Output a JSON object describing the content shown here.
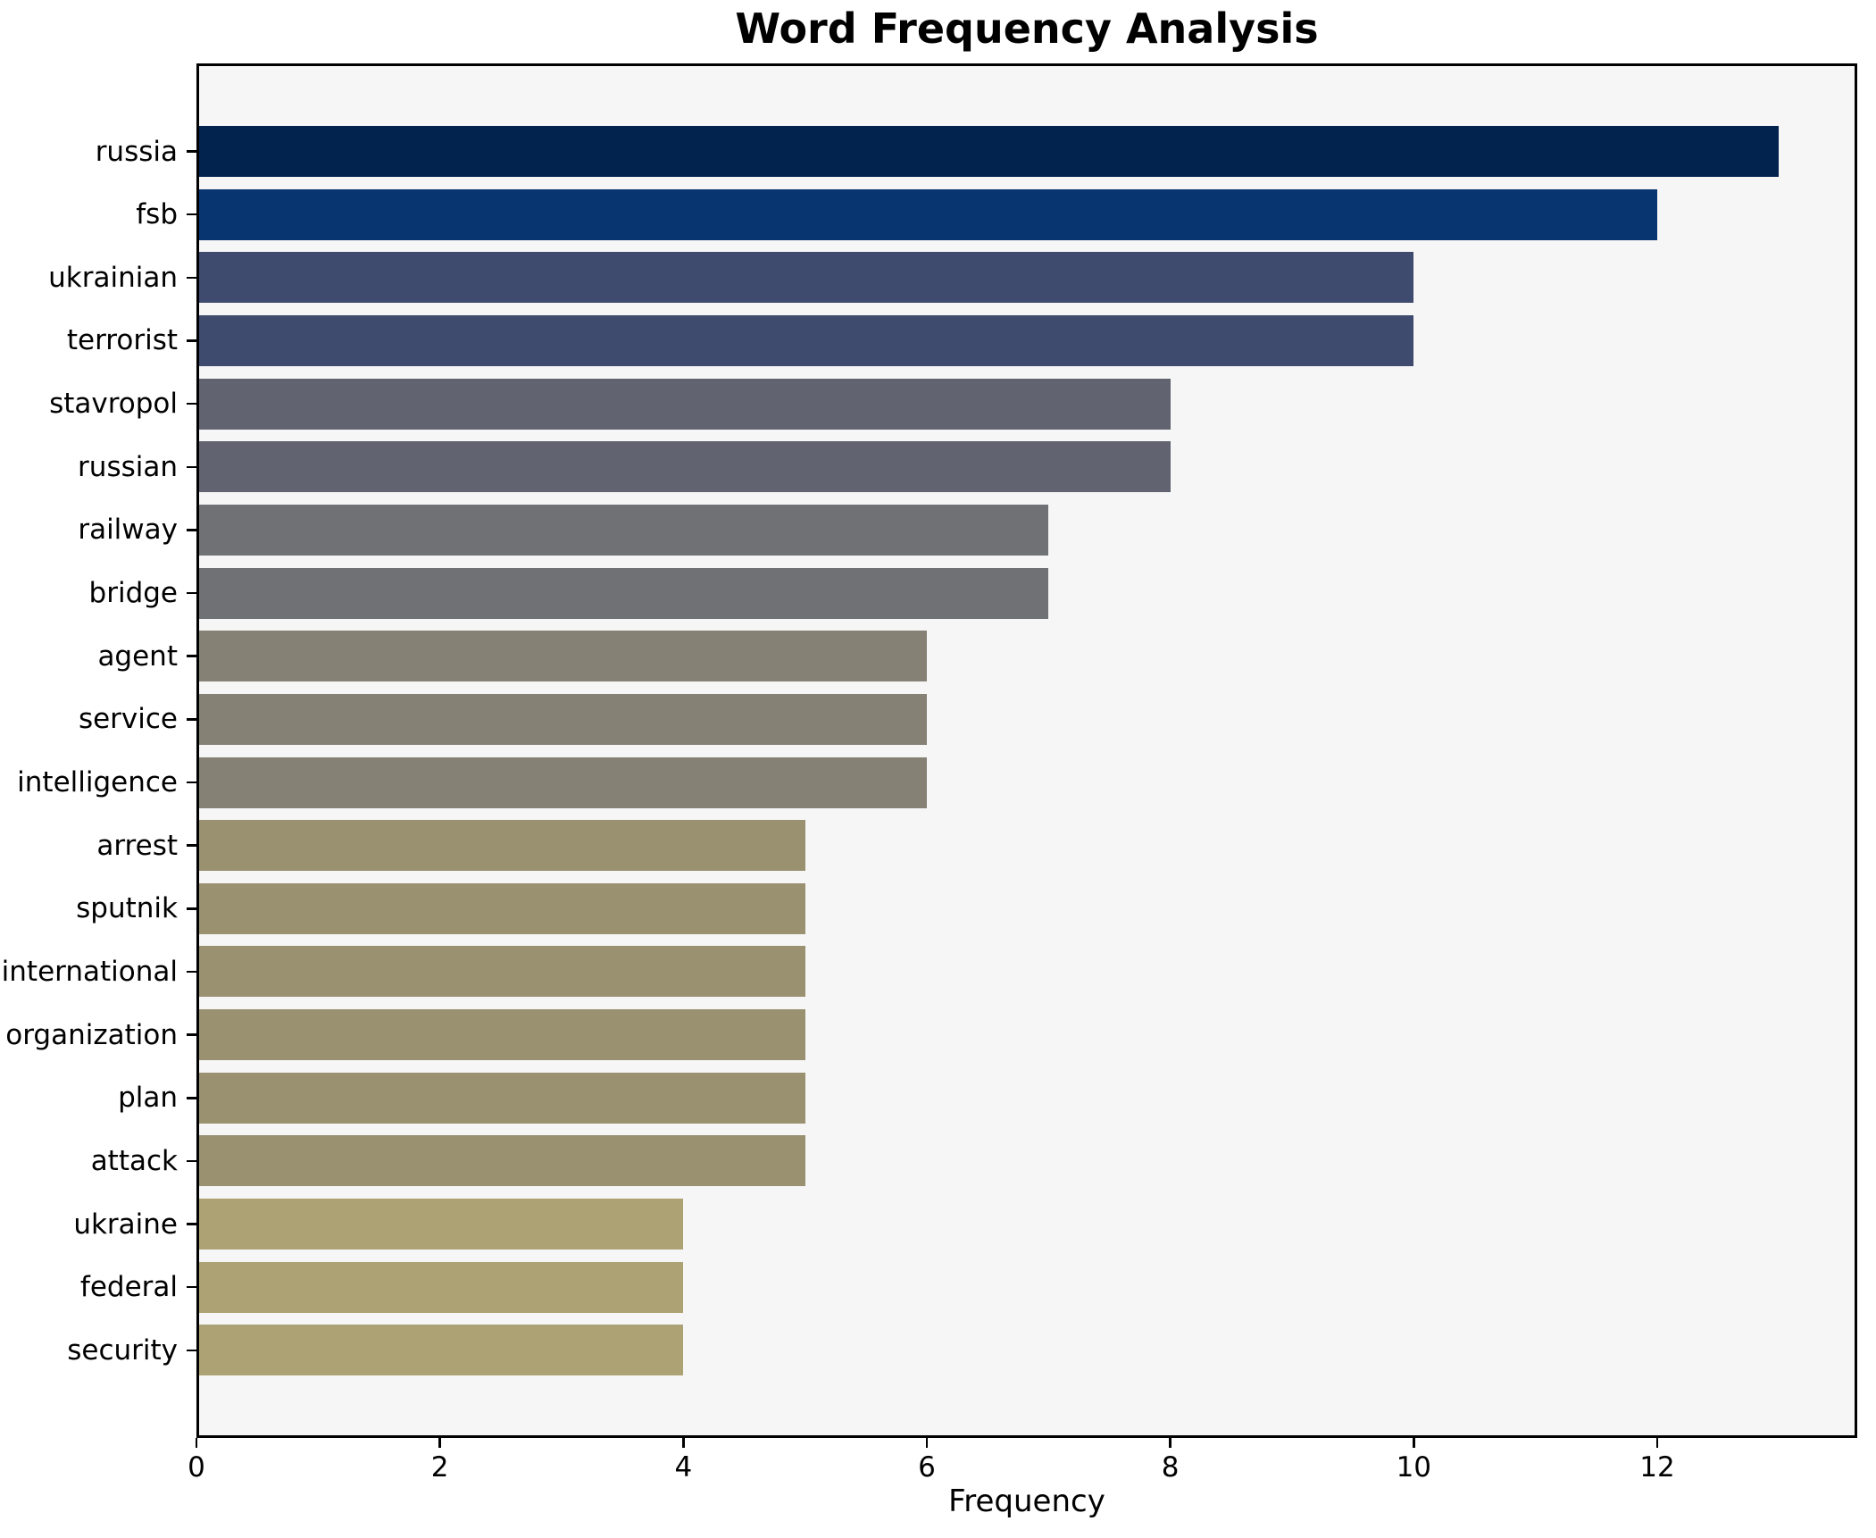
{
  "title": "Word Frequency Analysis",
  "chart_data": {
    "type": "bar",
    "orientation": "horizontal",
    "title": "Word Frequency Analysis",
    "xlabel": "Frequency",
    "ylabel": "",
    "xlim": [
      0,
      13.64
    ],
    "x_ticks": [
      0,
      2,
      4,
      6,
      8,
      10,
      12
    ],
    "grid": false,
    "legend_position": "none",
    "plot_background": "#f6f6f7",
    "figure_background": "#ffffff",
    "spine_color": "#000000",
    "categories": [
      "russia",
      "fsb",
      "ukrainian",
      "terrorist",
      "stavropol",
      "russian",
      "railway",
      "bridge",
      "agent",
      "service",
      "intelligence",
      "arrest",
      "sputnik",
      "international",
      "organization",
      "plan",
      "attack",
      "ukraine",
      "federal",
      "security"
    ],
    "values": [
      13,
      12,
      10,
      10,
      8,
      8,
      7,
      7,
      6,
      6,
      6,
      5,
      5,
      5,
      5,
      5,
      5,
      4,
      4,
      4
    ],
    "bar_colors": [
      "#01234e",
      "#08356f",
      "#3e4a6e",
      "#3e4a6e",
      "#616470",
      "#616470",
      "#707174",
      "#707174",
      "#858175",
      "#858175",
      "#858175",
      "#999170",
      "#999170",
      "#999170",
      "#999170",
      "#999170",
      "#999170",
      "#aca273",
      "#aca273",
      "#aca273"
    ]
  }
}
